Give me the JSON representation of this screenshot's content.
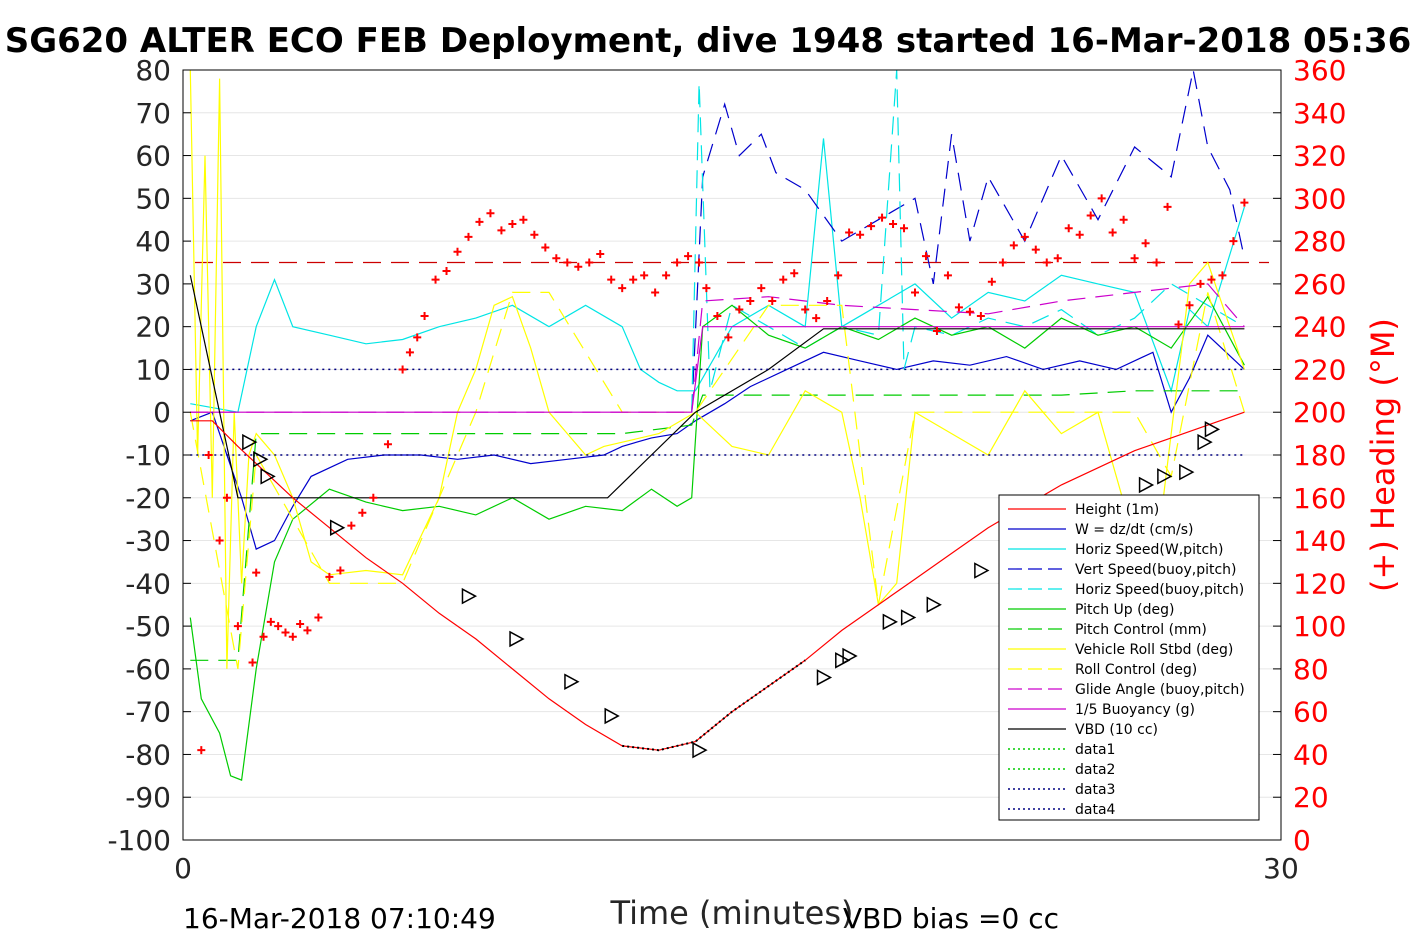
{
  "chart_data": {
    "type": "line",
    "title": "SG620 ALTER ECO FEB Deployment, dive 1948 started 16-Mar-2018 05:36",
    "xlabel": "Time (minutes)",
    "ylabel_right": "(+) Heading (°M)",
    "xlim": [
      0,
      30
    ],
    "ylim": [
      -100,
      80
    ],
    "ylim_right": [
      0,
      360
    ],
    "x_ticks": [
      "0",
      "30"
    ],
    "y_ticks": [
      "80",
      "70",
      "60",
      "50",
      "40",
      "30",
      "20",
      "10",
      "0",
      "-10",
      "-20",
      "-30",
      "-40",
      "-50",
      "-60",
      "-70",
      "-80",
      "-90",
      "-100"
    ],
    "y_right_ticks": [
      "360",
      "340",
      "320",
      "300",
      "280",
      "260",
      "240",
      "220",
      "200",
      "180",
      "160",
      "140",
      "120",
      "100",
      "80",
      "60",
      "40",
      "20",
      "0"
    ],
    "footer_left": "16-Mar-2018 07:10:49",
    "footer_right": "VBD bias =0 cc",
    "legend_position": "lower-right",
    "colors": {
      "height": "#ff0000",
      "w": "#0000cc",
      "horiz_speed": "#00e5e5",
      "vert_buoy": "#0000cc",
      "horiz_buoy": "#00e5e5",
      "pitch": "#00cc00",
      "pitch_control": "#00cc00",
      "roll": "#ffff00",
      "roll_control": "#ffff00",
      "glide": "#cc00cc",
      "buoyancy": "#cc00cc",
      "vbd": "#000000",
      "heading": "#ff0000",
      "ref_red": "#cc0000",
      "data_blue": "#000080"
    },
    "series": [
      {
        "name": "Height (1m)",
        "style": "solid",
        "color": "height",
        "x": [
          0.2,
          0.8,
          1.5,
          2.0,
          2.5,
          3.0,
          4.0,
          5.0,
          6.0,
          7.0,
          8.0,
          9.0,
          10.0,
          11.0,
          12.0,
          13.0,
          14.0,
          15.0,
          16.0,
          17.0,
          18.0,
          19.0,
          20.0,
          21.0,
          22.0,
          23.0,
          24.0,
          25.0,
          26.0,
          27.0,
          28.0,
          29.0
        ],
        "y": [
          -2,
          -2,
          -8,
          -12,
          -16,
          -20,
          -27,
          -34,
          -40,
          -47,
          -53,
          -60,
          -67,
          -73,
          -78,
          -79,
          -77,
          -70,
          -64,
          -58,
          -51,
          -45,
          -39,
          -33,
          -27,
          -22,
          -17,
          -13,
          -9,
          -6,
          -3,
          0
        ]
      },
      {
        "name": "W = dz/dt (cm/s)",
        "style": "solid",
        "color": "w",
        "x": [
          0.2,
          0.8,
          1.2,
          1.6,
          2.0,
          2.5,
          3.0,
          3.5,
          4.5,
          5.5,
          6.5,
          7.5,
          8.5,
          9.5,
          10.5,
          11.5,
          12.0,
          12.8,
          13.5,
          14.0,
          14.8,
          15.5,
          16.5,
          17.5,
          18.5,
          19.5,
          20.5,
          21.5,
          22.5,
          23.5,
          24.5,
          25.5,
          26.5,
          27.0,
          27.5,
          28.0,
          29.0
        ],
        "y": [
          -2,
          0,
          -10,
          -20,
          -32,
          -30,
          -22,
          -15,
          -11,
          -10,
          -10,
          -11,
          -10,
          -12,
          -11,
          -10,
          -8,
          -6,
          -5,
          -2,
          2,
          6,
          10,
          14,
          12,
          10,
          12,
          11,
          13,
          10,
          12,
          10,
          14,
          0,
          8,
          18,
          10
        ]
      },
      {
        "name": "Horiz Speed(W,pitch)",
        "style": "solid",
        "color": "horiz_speed",
        "x": [
          0.2,
          1.5,
          2.0,
          2.5,
          3.0,
          4.0,
          5.0,
          6.0,
          7.0,
          8.0,
          9.0,
          10.0,
          11.0,
          12.0,
          12.5,
          13.0,
          13.5,
          14.0,
          15.0,
          16.0,
          17.0,
          17.5,
          18.0,
          19.0,
          20.0,
          21.0,
          22.0,
          23.0,
          24.0,
          25.0,
          26.0,
          27.0,
          27.5,
          28.0,
          29.0
        ],
        "y": [
          2,
          0,
          20,
          31,
          20,
          18,
          16,
          17,
          20,
          22,
          25,
          20,
          25,
          20,
          10,
          7,
          5,
          5,
          20,
          25,
          20,
          64,
          20,
          25,
          30,
          22,
          28,
          26,
          32,
          30,
          28,
          5,
          24,
          20,
          48
        ]
      },
      {
        "name": "Vert Speed(buoy,pitch)",
        "style": "dashed",
        "color": "vert_buoy",
        "x": [
          13.9,
          14.2,
          14.8,
          15.2,
          15.8,
          16.2,
          17.0,
          18.0,
          19.0,
          20.0,
          20.5,
          21.0,
          21.5,
          22.0,
          23.0,
          24.0,
          25.0,
          26.0,
          27.0,
          27.6,
          28.0,
          28.6,
          29.0
        ],
        "y": [
          0,
          55,
          72,
          60,
          65,
          56,
          52,
          40,
          45,
          50,
          30,
          65,
          40,
          55,
          40,
          60,
          45,
          62,
          55,
          80,
          62,
          52,
          36
        ]
      },
      {
        "name": "Horiz Speed(buoy,pitch)",
        "style": "dashed",
        "color": "horiz_buoy",
        "x": [
          13.9,
          14.1,
          14.4,
          15.0,
          16.0,
          17.0,
          18.0,
          19.0,
          19.5,
          19.7,
          20.0,
          21.0,
          22.0,
          23.0,
          24.0,
          25.0,
          26.0,
          27.0,
          28.0,
          29.0
        ],
        "y": [
          0,
          77,
          5,
          25,
          20,
          15,
          20,
          18,
          80,
          10,
          20,
          18,
          22,
          20,
          24,
          18,
          22,
          30,
          25,
          20
        ]
      },
      {
        "name": "Pitch Up (deg)",
        "style": "solid",
        "color": "pitch",
        "x": [
          0.2,
          0.5,
          1.0,
          1.3,
          1.6,
          2.0,
          2.5,
          3.0,
          4.0,
          5.0,
          6.0,
          7.0,
          8.0,
          9.0,
          10.0,
          11.0,
          12.0,
          12.8,
          13.5,
          13.9,
          14.2,
          15.0,
          16.0,
          17.0,
          18.0,
          19.0,
          20.0,
          21.0,
          22.0,
          23.0,
          24.0,
          25.0,
          26.0,
          27.0,
          28.0,
          29.0
        ],
        "y": [
          -48,
          -67,
          -75,
          -85,
          -86,
          -60,
          -35,
          -25,
          -18,
          -21,
          -23,
          -22,
          -24,
          -20,
          -25,
          -22,
          -23,
          -18,
          -22,
          -20,
          20,
          25,
          18,
          15,
          20,
          17,
          22,
          18,
          20,
          15,
          22,
          18,
          20,
          15,
          27,
          11
        ]
      },
      {
        "name": "Pitch Control (mm)",
        "style": "dashed",
        "color": "pitch_control",
        "x": [
          0.2,
          1.5,
          2.0,
          4.0,
          6.0,
          8.0,
          10.0,
          12.0,
          13.9,
          14.2,
          16.0,
          18.0,
          20.0,
          22.0,
          24.0,
          26.0,
          28.0,
          29.0
        ],
        "y": [
          -58,
          -58,
          -5,
          -5,
          -5,
          -5,
          -5,
          -5,
          -3,
          4,
          4,
          4,
          4,
          4,
          4,
          5,
          5,
          5
        ]
      },
      {
        "name": "Vehicle Roll Stbd (deg)",
        "style": "solid",
        "color": "roll",
        "x": [
          0.2,
          0.4,
          0.6,
          0.8,
          1.0,
          1.2,
          1.4,
          1.6,
          1.8,
          2.0,
          2.5,
          3.0,
          3.5,
          4.0,
          5.0,
          6.0,
          7.0,
          7.5,
          8.0,
          8.5,
          9.0,
          9.5,
          10.0,
          10.5,
          11.0,
          11.5,
          12.0,
          13.0,
          14.0,
          15.0,
          16.0,
          17.0,
          18.0,
          18.5,
          19.0,
          19.5,
          20.0,
          21.0,
          22.0,
          23.0,
          24.0,
          25.0,
          26.0,
          26.5,
          27.0,
          27.5,
          28.0,
          29.0
        ],
        "y": [
          80,
          -10,
          60,
          -20,
          78,
          -60,
          0,
          -40,
          -10,
          -5,
          -10,
          -20,
          -35,
          -38,
          -37,
          -38,
          -20,
          0,
          10,
          25,
          27,
          15,
          0,
          -5,
          -10,
          -8,
          -7,
          -5,
          0,
          -8,
          -10,
          5,
          0,
          -20,
          -45,
          -40,
          0,
          -5,
          -10,
          5,
          -5,
          0,
          -30,
          -40,
          -5,
          30,
          35,
          10
        ]
      },
      {
        "name": "Roll Control (deg)",
        "style": "dashed",
        "color": "roll_control",
        "x": [
          0.2,
          1.5,
          2.0,
          4.0,
          6.0,
          7.0,
          8.0,
          9.0,
          10.0,
          12.0,
          14.0,
          16.0,
          18.0,
          19.0,
          20.0,
          22.0,
          24.0,
          26.0,
          27.0,
          28.0,
          29.0
        ],
        "y": [
          0,
          -60,
          -10,
          -40,
          -40,
          -20,
          0,
          28,
          28,
          0,
          0,
          25,
          25,
          -45,
          0,
          0,
          0,
          0,
          -15,
          28,
          0
        ]
      },
      {
        "name": "Glide Angle (buoy,pitch)",
        "style": "dashed",
        "color": "glide",
        "x": [
          0.2,
          4.0,
          8.0,
          12.0,
          13.9,
          14.2,
          16.0,
          18.0,
          20.0,
          22.0,
          24.0,
          26.0,
          28.0,
          29.0
        ],
        "y": [
          0,
          0,
          0,
          0,
          0,
          26,
          27,
          25,
          24,
          23,
          26,
          28,
          30,
          20
        ]
      },
      {
        "name": "1/5 Buoyancy (g)",
        "style": "solid",
        "color": "buoyancy",
        "x": [
          0.2,
          12.0,
          13.9,
          14.2,
          16.0,
          18.0,
          20.0,
          22.0,
          24.0,
          26.0,
          28.0,
          29.0
        ],
        "y": [
          0,
          0,
          0,
          20,
          20,
          20,
          20,
          20,
          20,
          20,
          20,
          20
        ]
      },
      {
        "name": "VBD (10 cc)",
        "style": "solid",
        "color": "vbd",
        "x": [
          0.2,
          1.5,
          4.0,
          6.0,
          8.0,
          10.0,
          11.6,
          14.0,
          16.0,
          17.5,
          20.0,
          22.0,
          24.0,
          26.0,
          28.0,
          29.0
        ],
        "y": [
          32,
          -20,
          -20,
          -20,
          -20,
          -20,
          -20,
          0,
          10,
          19.5,
          19.5,
          19.5,
          19.5,
          19.5,
          19.5,
          19.5
        ]
      },
      {
        "name": "data1",
        "style": "dotted",
        "color": "pitch_control",
        "x": [],
        "y": []
      },
      {
        "name": "data2",
        "style": "dotted",
        "color": "pitch_control",
        "x": [],
        "y": []
      },
      {
        "name": "data3",
        "style": "dotted",
        "color": "data_blue",
        "x": [
          0.2,
          29.0
        ],
        "y": [
          10,
          10
        ]
      },
      {
        "name": "data4",
        "style": "dotted",
        "color": "data_blue",
        "x": [
          0.2,
          29.0
        ],
        "y": [
          -10,
          -10
        ]
      }
    ],
    "reference_lines": [
      {
        "axis": "y",
        "value": 35,
        "color": "ref_red",
        "style": "dashed"
      }
    ],
    "heading_points": {
      "color": "heading",
      "axis": "right",
      "x": [
        0.5,
        0.7,
        1.0,
        1.2,
        1.5,
        1.9,
        2.0,
        2.2,
        2.4,
        2.6,
        2.8,
        3.0,
        3.2,
        3.4,
        3.7,
        4.0,
        4.3,
        4.6,
        4.9,
        5.2,
        5.6,
        6.0,
        6.2,
        6.4,
        6.6,
        6.9,
        7.2,
        7.5,
        7.8,
        8.1,
        8.4,
        8.7,
        9.0,
        9.3,
        9.6,
        9.9,
        10.2,
        10.5,
        10.8,
        11.1,
        11.4,
        11.7,
        12.0,
        12.3,
        12.6,
        12.9,
        13.2,
        13.5,
        13.8,
        14.1,
        14.3,
        14.6,
        14.9,
        15.2,
        15.5,
        15.8,
        16.1,
        16.4,
        16.7,
        17.0,
        17.3,
        17.6,
        17.9,
        18.2,
        18.5,
        18.8,
        19.1,
        19.4,
        19.7,
        20.0,
        20.3,
        20.6,
        20.9,
        21.2,
        21.5,
        21.8,
        22.1,
        22.4,
        22.7,
        23.0,
        23.3,
        23.6,
        23.9,
        24.2,
        24.5,
        24.8,
        25.1,
        25.4,
        25.7,
        26.0,
        26.3,
        26.6,
        26.9,
        27.2,
        27.5,
        27.8,
        28.1,
        28.4,
        28.7,
        29.0
      ],
      "y": [
        42,
        180,
        140,
        160,
        100,
        83,
        125,
        95,
        102,
        100,
        97,
        95,
        101,
        98,
        104,
        123,
        126,
        147,
        153,
        160,
        185,
        220,
        228,
        235,
        245,
        262,
        266,
        275,
        282,
        289,
        293,
        285,
        288,
        290,
        283,
        277,
        272,
        270,
        268,
        270,
        274,
        262,
        258,
        262,
        264,
        256,
        264,
        270,
        273,
        270,
        258,
        245,
        235,
        248,
        252,
        258,
        252,
        262,
        265,
        248,
        244,
        252,
        264,
        284,
        283,
        287,
        291,
        288,
        286,
        256,
        273,
        238,
        264,
        249,
        247,
        245,
        261,
        270,
        278,
        282,
        276,
        270,
        272,
        286,
        283,
        292,
        300,
        284,
        290,
        272,
        279,
        270,
        296,
        241,
        250,
        260,
        262,
        264,
        280,
        298
      ]
    },
    "direction_markers": {
      "x": [
        1.8,
        2.1,
        2.3,
        4.2,
        7.8,
        9.1,
        10.6,
        11.7,
        14.1,
        17.5,
        18.0,
        18.2,
        19.3,
        19.8,
        20.5,
        21.8,
        22.9,
        26.3,
        26.8,
        27.4,
        27.9,
        28.1
      ],
      "y": [
        -7,
        -11,
        -15,
        -27,
        -43,
        -53,
        -63,
        -71,
        -79,
        -62,
        -58,
        -57,
        -49,
        -48,
        -45,
        -37,
        -33,
        -17,
        -15,
        -14,
        -7,
        -4
      ]
    }
  }
}
